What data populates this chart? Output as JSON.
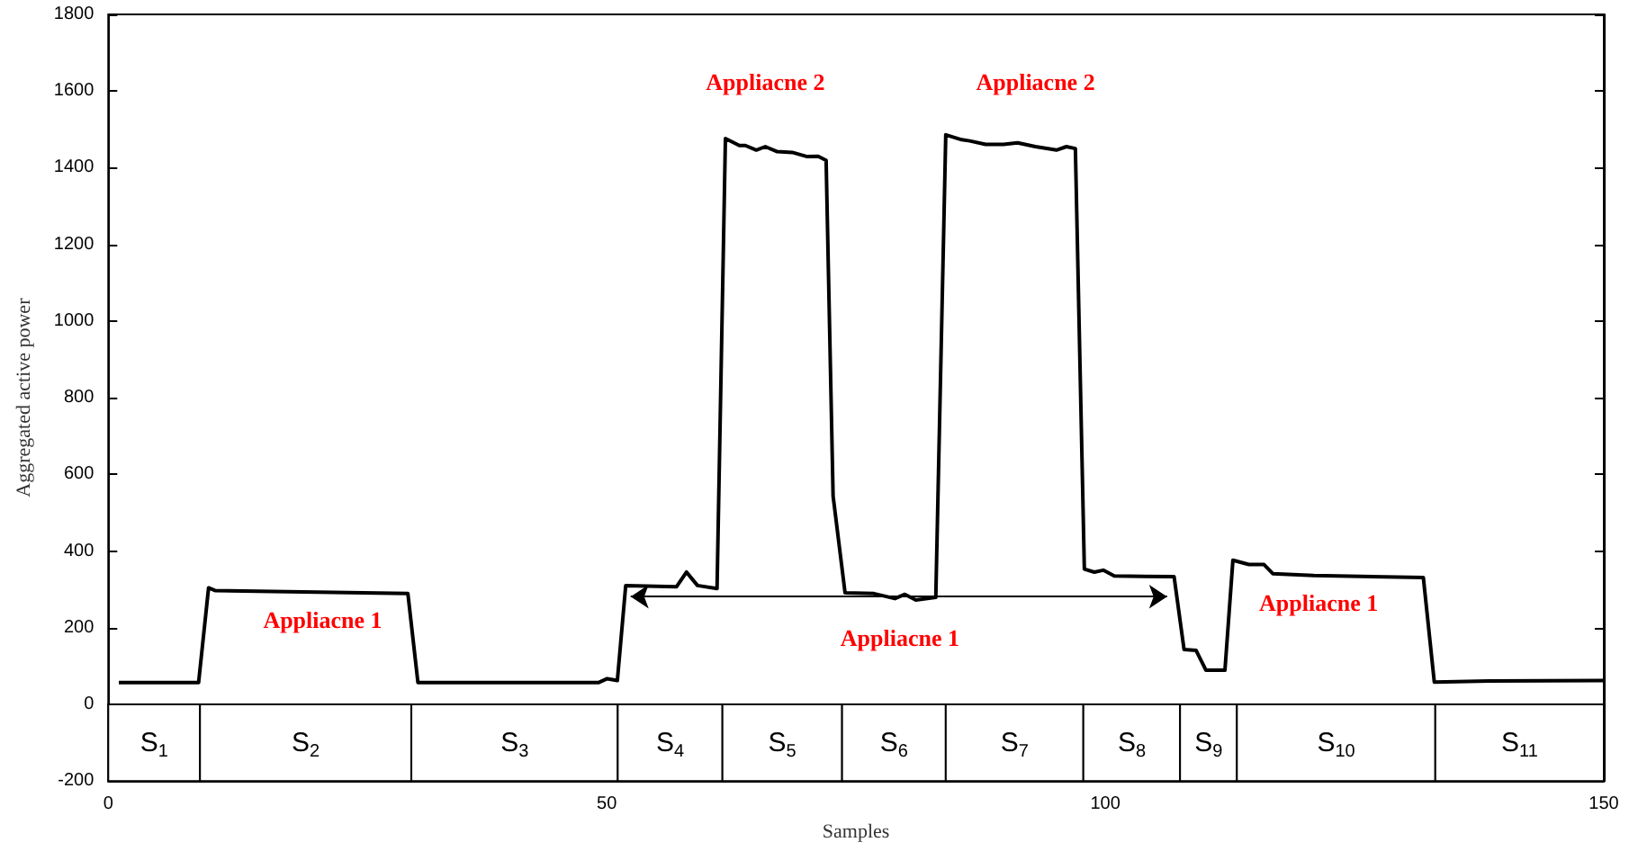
{
  "chart_data": {
    "type": "line",
    "xlabel": "Samples",
    "ylabel": "Aggregated active power",
    "color": "#000000",
    "marker": "none",
    "line_style": "solid",
    "grid": false,
    "x": [
      1.06,
      9.06,
      10.06,
      10.7,
      30.05,
      31.06,
      49.2,
      50.05,
      51.06,
      51.9,
      57.0,
      58.0,
      59.1,
      61.06,
      61.9,
      63.3,
      63.9,
      65.0,
      65.9,
      67.1,
      68.6,
      70.1,
      71.2,
      72.0,
      72.7,
      73.9,
      76.8,
      78.9,
      79.9,
      81.0,
      83.0,
      84.0,
      85.6,
      86.4,
      88.0,
      89.8,
      91.2,
      93.0,
      95.1,
      96.1,
      97.0,
      97.9,
      98.9,
      99.8,
      100.9,
      106.9,
      107.9,
      109.1,
      110.1,
      112.0,
      112.8,
      114.4,
      115.9,
      116.8,
      120.9,
      131.9,
      133.0,
      138.5,
      150
    ],
    "values": [
      57,
      57,
      304,
      297,
      289,
      57,
      57,
      67,
      62,
      310,
      307,
      345,
      310,
      302,
      1476,
      1458,
      1458,
      1446,
      1455,
      1442,
      1440,
      1429,
      1430,
      1419,
      543,
      291,
      289,
      276,
      287,
      272,
      279,
      1486,
      1473,
      1470,
      1461,
      1461,
      1465,
      1455,
      1446,
      1455,
      1450,
      353,
      345,
      350,
      335,
      333,
      143,
      141,
      89,
      89,
      376,
      365,
      365,
      341,
      336,
      331,
      58,
      61,
      62
    ],
    "xlim": [
      0,
      150
    ],
    "xticks": [
      0,
      50,
      100,
      150
    ],
    "ylim": [
      -200,
      1800
    ],
    "yticks": [
      -200,
      0,
      200,
      400,
      600,
      800,
      1000,
      1200,
      1400,
      1600,
      1800
    ],
    "bands": [
      {
        "axis": "x",
        "from": 0,
        "to": 9.2,
        "label": "S$_{1}$",
        "color": "#ffffff"
      },
      {
        "axis": "x",
        "from": 9.2,
        "to": 30.4,
        "label": "S$_{2}$",
        "color": "#ffffff"
      },
      {
        "axis": "x",
        "from": 30.4,
        "to": 51.1,
        "label": "S$_{3}$",
        "color": "#ffffff"
      },
      {
        "axis": "x",
        "from": 51.1,
        "to": 61.6,
        "label": "S$_{4}$",
        "color": "#ffffff"
      },
      {
        "axis": "x",
        "from": 61.6,
        "to": 73.6,
        "label": "S$_{5}$",
        "color": "#ffffff"
      },
      {
        "axis": "x",
        "from": 73.6,
        "to": 84.0,
        "label": "S$_{6}$",
        "color": "#ffffff"
      },
      {
        "axis": "x",
        "from": 84.0,
        "to": 97.8,
        "label": "S$_{7}$",
        "color": "#ffffff"
      },
      {
        "axis": "x",
        "from": 97.8,
        "to": 107.5,
        "label": "S$_{8}$",
        "color": "#ffffff"
      },
      {
        "axis": "x",
        "from": 107.5,
        "to": 113.2,
        "label": "S$_{9}$",
        "color": "#ffffff"
      },
      {
        "axis": "x",
        "from": 113.2,
        "to": 133.1,
        "label": "S$_{10}$",
        "color": "#ffffff"
      },
      {
        "axis": "x",
        "from": 133.1,
        "to": 150,
        "label": "S$_{11}$",
        "color": "#ffffff"
      }
    ],
    "annotations": [
      {
        "text": "Appliacne 1",
        "x": 21.5,
        "y": 292
      },
      {
        "text": "Appliacne 1",
        "x": 79.4,
        "y": 281
      },
      {
        "text": "Appliacne 1",
        "x": 121.4,
        "y": 336
      },
      {
        "text": "Appliacne 2",
        "x": 65.9,
        "y": 1455
      },
      {
        "text": "Appliacne 2",
        "x": 93.0,
        "y": 1455
      }
    ]
  }
}
